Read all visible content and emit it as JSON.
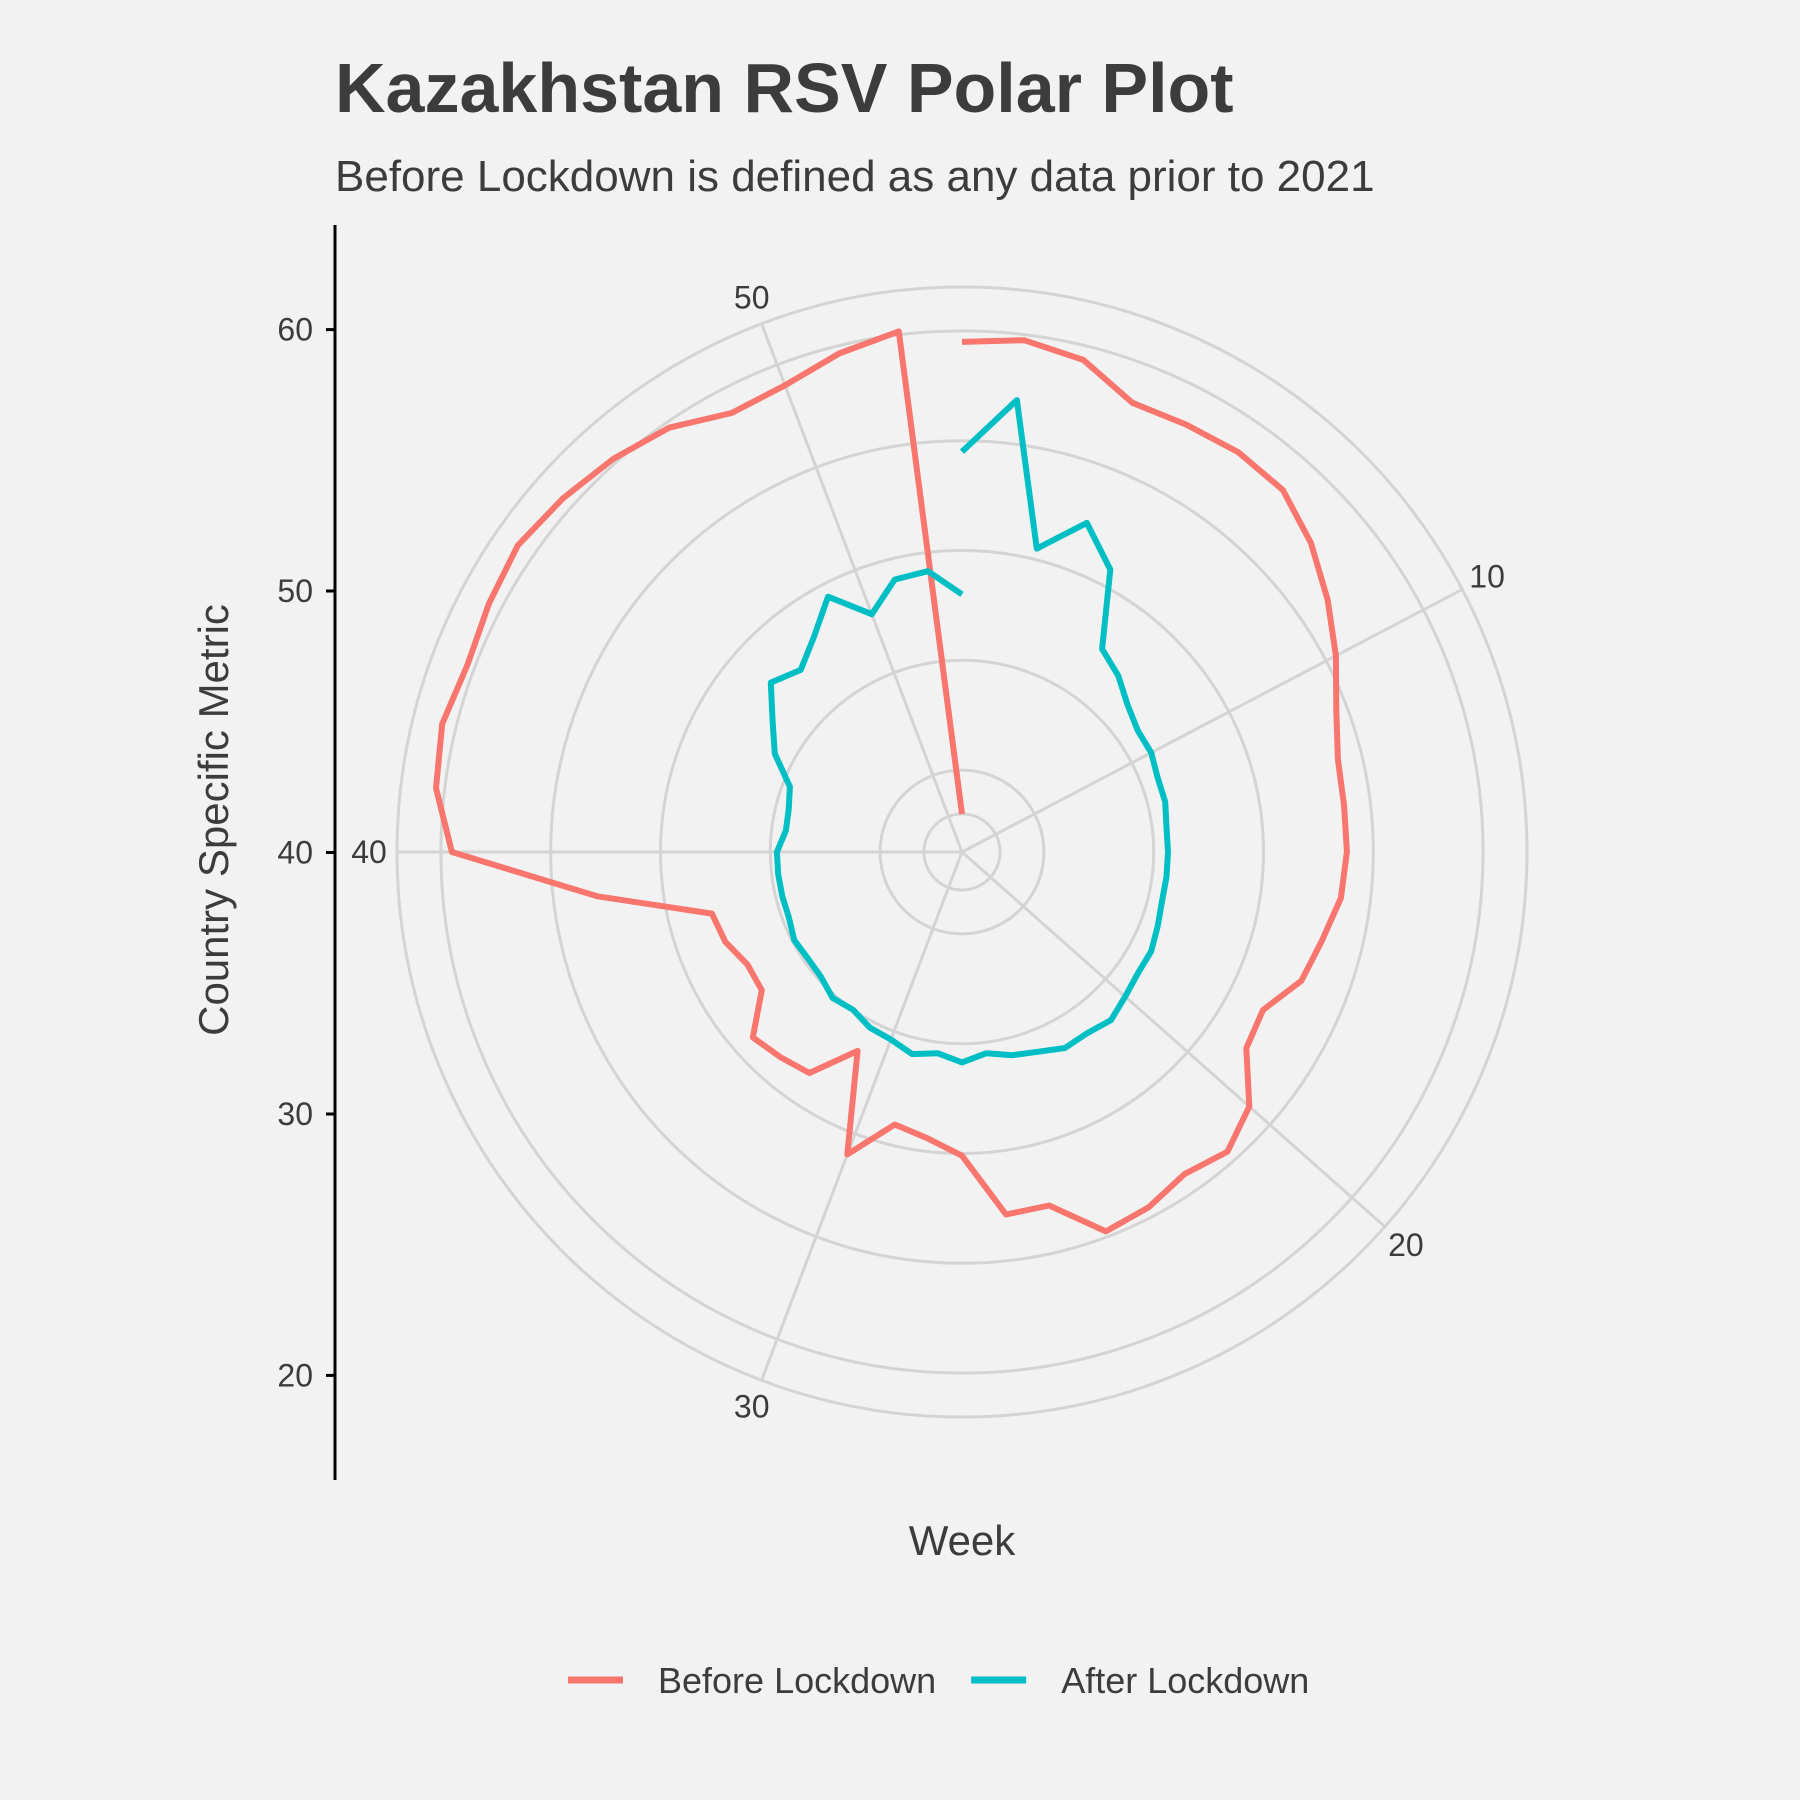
{
  "chart_data": {
    "type": "line",
    "coordinate_system": "polar",
    "title": "Kazakhstan RSV Polar Plot",
    "subtitle": "Before Lockdown is defined as any data prior to 2021",
    "xlabel": "Week",
    "ylabel": "Country Specific Metric",
    "x_range": [
      1,
      53
    ],
    "y_range": [
      16,
      64
    ],
    "x_ticks": [
      10,
      20,
      30,
      40,
      50
    ],
    "y_ticks": [
      20,
      30,
      40,
      50,
      60
    ],
    "legend_position": "bottom",
    "grid": true,
    "series": [
      {
        "name": "Before Lockdown",
        "color": "#F8766D",
        "points": [
          [
            1,
            59
          ],
          [
            2,
            59.5
          ],
          [
            3,
            58.7
          ],
          [
            4,
            56.3
          ],
          [
            5,
            56.5
          ],
          [
            6,
            56.8
          ],
          [
            7,
            56.6
          ],
          [
            8,
            55
          ],
          [
            9,
            53
          ],
          [
            10,
            51
          ],
          [
            11,
            49
          ],
          [
            12,
            47.8
          ],
          [
            13,
            47.6
          ],
          [
            14,
            47.6
          ],
          [
            15,
            47.3
          ],
          [
            16,
            46.3
          ],
          [
            17,
            45.6
          ],
          [
            18,
            43.5
          ],
          [
            19,
            44
          ],
          [
            20,
            47.5
          ],
          [
            21,
            49
          ],
          [
            22,
            48.2
          ],
          [
            23,
            49.1
          ],
          [
            24,
            49.5
          ],
          [
            25,
            45.7
          ],
          [
            26,
            45.8
          ],
          [
            27,
            40.2
          ],
          [
            28,
            38.8
          ],
          [
            29,
            38.1
          ],
          [
            30,
            42
          ],
          [
            31,
            33
          ],
          [
            32,
            37
          ],
          [
            33,
            37.5
          ],
          [
            34,
            38
          ],
          [
            35,
            34.7
          ],
          [
            36,
            34.6
          ],
          [
            37,
            35.6
          ],
          [
            38,
            36
          ],
          [
            39,
            46
          ],
          [
            40,
            59
          ],
          [
            41,
            60.8
          ],
          [
            42,
            61.3
          ],
          [
            43,
            60.7
          ],
          [
            44,
            61.2
          ],
          [
            45,
            61.7
          ],
          [
            46,
            61.1
          ],
          [
            47,
            60.4
          ],
          [
            48,
            59.5
          ],
          [
            49,
            57.7
          ],
          [
            50,
            58
          ],
          [
            51,
            59.3
          ],
          [
            52,
            60.3
          ],
          [
            53,
            16
          ]
        ]
      },
      {
        "name": "After Lockdown",
        "color": "#00BFC4",
        "points": [
          [
            1,
            49
          ],
          [
            2,
            54
          ],
          [
            3,
            41
          ],
          [
            4,
            44.6
          ],
          [
            5,
            41.6
          ],
          [
            6,
            35
          ],
          [
            7,
            34
          ],
          [
            8,
            32.7
          ],
          [
            9,
            32
          ],
          [
            10,
            32
          ],
          [
            11,
            31.6
          ],
          [
            12,
            31.6
          ],
          [
            13,
            31.3
          ],
          [
            14,
            31.3
          ],
          [
            15,
            31.3
          ],
          [
            16,
            31.3
          ],
          [
            17,
            31.6
          ],
          [
            18,
            32
          ],
          [
            19,
            32
          ],
          [
            20,
            32.4
          ],
          [
            21,
            33
          ],
          [
            22,
            32.6
          ],
          [
            23,
            32.7
          ],
          [
            24,
            32
          ],
          [
            25,
            31.6
          ],
          [
            26,
            31
          ],
          [
            27,
            31.7
          ],
          [
            28,
            31
          ],
          [
            29,
            31.5
          ],
          [
            30,
            30.8
          ],
          [
            31,
            30.6
          ],
          [
            32,
            30
          ],
          [
            33,
            30.3
          ],
          [
            34,
            29.7
          ],
          [
            35,
            29.6
          ],
          [
            36,
            29.8
          ],
          [
            37,
            29.4
          ],
          [
            38,
            29.4
          ],
          [
            39,
            29.4
          ],
          [
            40,
            29.4
          ],
          [
            41,
            28.7
          ],
          [
            42,
            28.8
          ],
          [
            43,
            29.3
          ],
          [
            44,
            31.8
          ],
          [
            45,
            33.5
          ],
          [
            46,
            35.8
          ],
          [
            47,
            34.7
          ],
          [
            48,
            36.3
          ],
          [
            49,
            38.8
          ],
          [
            50,
            35.7
          ],
          [
            51,
            38.1
          ],
          [
            52,
            38.3
          ],
          [
            53,
            36
          ]
        ]
      }
    ]
  }
}
